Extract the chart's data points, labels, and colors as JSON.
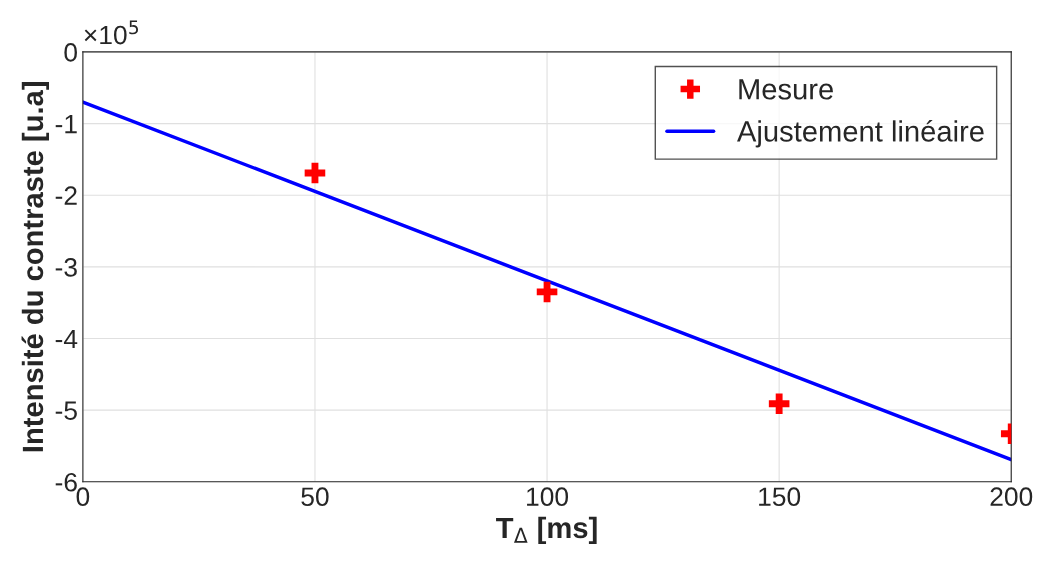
{
  "chart_data": {
    "type": "scatter",
    "xlabel": "T$_{Δ}$ [ms]",
    "ylabel": "Intensité du contraste [u.a]",
    "annotations": [
      "×10$^{5}$"
    ],
    "x": [
      50,
      100,
      150,
      200
    ],
    "series": [
      {
        "name": "Mesure",
        "color": "#ff0000",
        "marker": "cross",
        "values": [
          -1.69,
          -3.35,
          -4.91,
          -5.33
        ]
      },
      {
        "name": "Ajustement linéaire",
        "type": "line",
        "color": "#0000ff",
        "line_style": "solid",
        "marker": "none",
        "x": [
          0,
          200
        ],
        "values": [
          -0.7,
          -5.69
        ]
      }
    ],
    "xlim": [
      0,
      200
    ],
    "xticks": [
      0,
      50,
      100,
      150,
      200
    ],
    "ylim": [
      -6,
      0
    ],
    "yticks": [
      -6,
      -5,
      -4,
      -3,
      -2,
      -1,
      0
    ],
    "grid": true,
    "legend": "top right"
  }
}
